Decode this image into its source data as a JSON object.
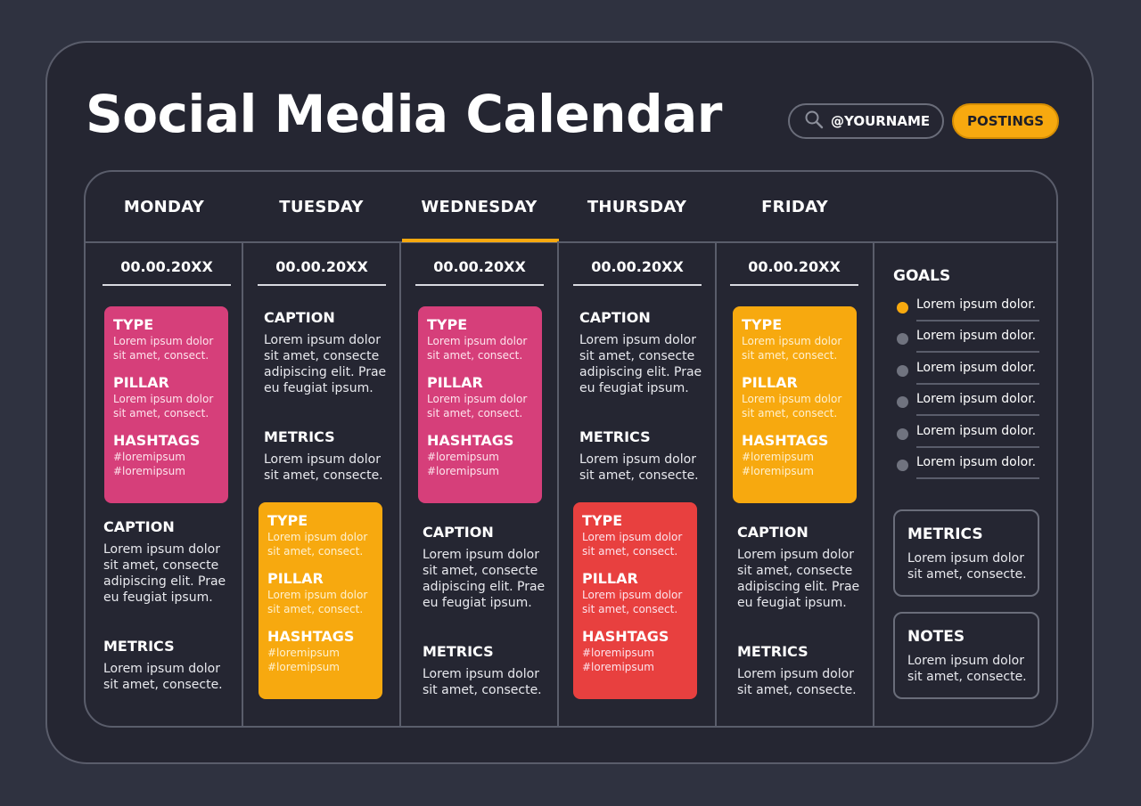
{
  "title": "Social Media Calendar",
  "search": {
    "handle": "@YOURNAME",
    "icon": "search-icon"
  },
  "postings_label": "POSTINGS",
  "colors": {
    "accent": "#f7a90f",
    "pink": "#d63f7a",
    "red": "#e8403f",
    "background": "#252632"
  },
  "days": [
    {
      "name": "MONDAY",
      "date": "00.00.20XX",
      "card": {
        "color": "pink",
        "type_label": "TYPE",
        "type_text": "Lorem ipsum dolor sit amet, consect.",
        "pillar_label": "PILLAR",
        "pillar_text": "Lorem ipsum dolor sit amet, consect.",
        "hashtags_label": "HASHTAGS",
        "hashtags_text": "#loremipsum #loremipsum"
      },
      "caption_label": "CAPTION",
      "caption_text": "Lorem ipsum dolor sit amet, consecte adipiscing elit. Prae eu feugiat ipsum.",
      "metrics_label": "METRICS",
      "metrics_text": "Lorem ipsum dolor sit amet, consecte."
    },
    {
      "name": "TUESDAY",
      "date": "00.00.20XX",
      "card": {
        "color": "orange",
        "type_label": "TYPE",
        "type_text": "Lorem ipsum dolor sit amet, consect.",
        "pillar_label": "PILLAR",
        "pillar_text": "Lorem ipsum dolor sit amet, consect.",
        "hashtags_label": "HASHTAGS",
        "hashtags_text": "#loremipsum #loremipsum"
      },
      "caption_label": "CAPTION",
      "caption_text": "Lorem ipsum dolor sit amet, consecte adipiscing elit. Prae eu feugiat ipsum.",
      "metrics_label": "METRICS",
      "metrics_text": "Lorem ipsum dolor sit amet, consecte."
    },
    {
      "name": "WEDNESDAY",
      "date": "00.00.20XX",
      "card": {
        "color": "pink",
        "type_label": "TYPE",
        "type_text": "Lorem ipsum dolor sit amet, consect.",
        "pillar_label": "PILLAR",
        "pillar_text": "Lorem ipsum dolor sit amet, consect.",
        "hashtags_label": "HASHTAGS",
        "hashtags_text": "#loremipsum #loremipsum"
      },
      "caption_label": "CAPTION",
      "caption_text": "Lorem ipsum dolor sit amet, consecte adipiscing elit. Prae eu feugiat ipsum.",
      "metrics_label": "METRICS",
      "metrics_text": "Lorem ipsum dolor sit amet, consecte."
    },
    {
      "name": "THURSDAY",
      "date": "00.00.20XX",
      "card": {
        "color": "red",
        "type_label": "TYPE",
        "type_text": "Lorem ipsum dolor sit amet, consect.",
        "pillar_label": "PILLAR",
        "pillar_text": "Lorem ipsum dolor sit amet, consect.",
        "hashtags_label": "HASHTAGS",
        "hashtags_text": "#loremipsum #loremipsum"
      },
      "caption_label": "CAPTION",
      "caption_text": "Lorem ipsum dolor sit amet, consecte adipiscing elit. Prae eu feugiat ipsum.",
      "metrics_label": "METRICS",
      "metrics_text": "Lorem ipsum dolor sit amet, consecte."
    },
    {
      "name": "FRIDAY",
      "date": "00.00.20XX",
      "card": {
        "color": "orange",
        "type_label": "TYPE",
        "type_text": "Lorem ipsum dolor sit amet, consect.",
        "pillar_label": "PILLAR",
        "pillar_text": "Lorem ipsum dolor sit amet, consect.",
        "hashtags_label": "HASHTAGS",
        "hashtags_text": "#loremipsum #loremipsum"
      },
      "caption_label": "CAPTION",
      "caption_text": "Lorem ipsum dolor sit amet, consecte adipiscing elit. Prae eu feugiat ipsum.",
      "metrics_label": "METRICS",
      "metrics_text": "Lorem ipsum dolor sit amet, consecte."
    }
  ],
  "active_day": "WEDNESDAY",
  "goals": {
    "title": "GOALS",
    "items": [
      {
        "text": "Lorem ipsum dolor.",
        "active": true
      },
      {
        "text": "Lorem ipsum dolor.",
        "active": false
      },
      {
        "text": "Lorem ipsum dolor.",
        "active": false
      },
      {
        "text": "Lorem ipsum dolor.",
        "active": false
      },
      {
        "text": "Lorem ipsum dolor.",
        "active": false
      },
      {
        "text": "Lorem ipsum dolor.",
        "active": false
      }
    ]
  },
  "metrics_box": {
    "title": "METRICS",
    "text": "Lorem ipsum dolor sit amet, consecte."
  },
  "notes_box": {
    "title": "NOTES",
    "text": "Lorem ipsum dolor sit amet, consecte."
  }
}
